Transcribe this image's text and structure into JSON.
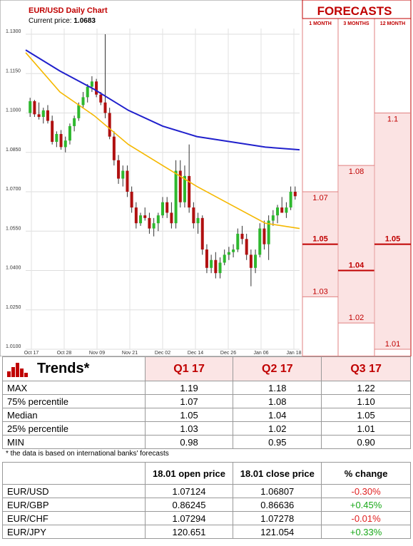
{
  "chart": {
    "title": "EUR/USD Daily Chart",
    "current_price_label": "Current price:",
    "current_price": "1.0683",
    "forecasts_title": "FORECASTS",
    "forecast_columns": [
      "1 MONTH",
      "3 MONTHS",
      "12 MONTH"
    ]
  },
  "chart_data": {
    "type": "candlestick",
    "title": "EUR/USD Daily Chart",
    "ylim": [
      1.01,
      1.13
    ],
    "y_ticks": [
      "1.1300",
      "1.1150",
      "1.1000",
      "1.0850",
      "1.0700",
      "1.0550",
      "1.0400",
      "1.0250",
      "1.0100"
    ],
    "y_tick_values": [
      1.13,
      1.115,
      1.1,
      1.085,
      1.07,
      1.055,
      1.04,
      1.025,
      1.01
    ],
    "x_ticks": [
      "Oct 17",
      "Oct 28",
      "Nov 09",
      "Nov 21",
      "Dec 02",
      "Dec 14",
      "Dec 26",
      "Jan 06",
      "Jan 18"
    ],
    "candles": [
      [
        1.1,
        1.1058,
        1.0985,
        1.1045
      ],
      [
        1.1045,
        1.105,
        1.0985,
        1.0995
      ],
      [
        1.0995,
        1.104,
        1.0975,
        1.0985
      ],
      [
        1.0985,
        1.102,
        1.096,
        1.101
      ],
      [
        1.101,
        1.103,
        1.096,
        1.097
      ],
      [
        1.097,
        1.099,
        1.088,
        1.089
      ],
      [
        1.089,
        1.093,
        1.087,
        1.092
      ],
      [
        1.092,
        1.0935,
        1.086,
        1.087
      ],
      [
        1.087,
        1.091,
        1.085,
        1.0895
      ],
      [
        1.0895,
        1.096,
        1.088,
        1.095
      ],
      [
        1.095,
        1.099,
        1.093,
        1.098
      ],
      [
        1.098,
        1.104,
        1.097,
        1.103
      ],
      [
        1.103,
        1.108,
        1.102,
        1.106
      ],
      [
        1.106,
        1.111,
        1.104,
        1.11
      ],
      [
        1.11,
        1.114,
        1.108,
        1.112
      ],
      [
        1.112,
        1.113,
        1.106,
        1.107
      ],
      [
        1.107,
        1.108,
        1.103,
        1.104
      ],
      [
        1.104,
        1.13,
        1.098,
        1.1
      ],
      [
        1.1,
        1.102,
        1.09,
        1.091
      ],
      [
        1.091,
        1.093,
        1.08,
        1.082
      ],
      [
        1.082,
        1.084,
        1.073,
        1.075
      ],
      [
        1.075,
        1.08,
        1.072,
        1.078
      ],
      [
        1.078,
        1.08,
        1.068,
        1.07
      ],
      [
        1.07,
        1.072,
        1.062,
        1.064
      ],
      [
        1.064,
        1.066,
        1.056,
        1.058
      ],
      [
        1.058,
        1.062,
        1.057,
        1.061
      ],
      [
        1.061,
        1.064,
        1.059,
        1.06
      ],
      [
        1.06,
        1.062,
        1.054,
        1.056
      ],
      [
        1.056,
        1.06,
        1.053,
        1.058
      ],
      [
        1.058,
        1.062,
        1.055,
        1.061
      ],
      [
        1.061,
        1.068,
        1.06,
        1.066
      ],
      [
        1.066,
        1.068,
        1.06,
        1.062
      ],
      [
        1.062,
        1.066,
        1.056,
        1.058
      ],
      [
        1.058,
        1.082,
        1.056,
        1.078
      ],
      [
        1.078,
        1.082,
        1.064,
        1.066
      ],
      [
        1.066,
        1.08,
        1.064,
        1.076
      ],
      [
        1.076,
        1.088,
        1.062,
        1.064
      ],
      [
        1.064,
        1.066,
        1.056,
        1.058
      ],
      [
        1.058,
        1.062,
        1.054,
        1.06
      ],
      [
        1.06,
        1.061,
        1.046,
        1.048
      ],
      [
        1.048,
        1.05,
        1.039,
        1.041
      ],
      [
        1.041,
        1.046,
        1.039,
        1.044
      ],
      [
        1.044,
        1.047,
        1.037,
        1.039
      ],
      [
        1.039,
        1.045,
        1.037,
        1.043
      ],
      [
        1.043,
        1.048,
        1.042,
        1.046
      ],
      [
        1.046,
        1.049,
        1.044,
        1.047
      ],
      [
        1.047,
        1.05,
        1.045,
        1.048
      ],
      [
        1.048,
        1.056,
        1.047,
        1.054
      ],
      [
        1.054,
        1.057,
        1.05,
        1.052
      ],
      [
        1.052,
        1.054,
        1.044,
        1.046
      ],
      [
        1.046,
        1.048,
        1.034,
        1.041
      ],
      [
        1.041,
        1.048,
        1.039,
        1.046
      ],
      [
        1.046,
        1.058,
        1.045,
        1.056
      ],
      [
        1.056,
        1.059,
        1.048,
        1.05
      ],
      [
        1.05,
        1.061,
        1.044,
        1.059
      ],
      [
        1.059,
        1.063,
        1.057,
        1.061
      ],
      [
        1.061,
        1.065,
        1.058,
        1.064
      ],
      [
        1.064,
        1.068,
        1.062,
        1.062
      ],
      [
        1.062,
        1.066,
        1.06,
        1.064
      ],
      [
        1.064,
        1.072,
        1.063,
        1.07
      ],
      [
        1.07,
        1.072,
        1.067,
        1.0683
      ]
    ],
    "ma_slow": [
      1.124,
      1.116,
      1.109,
      1.101,
      1.095,
      1.091,
      1.089,
      1.087,
      1.086
    ],
    "ma_fast": [
      1.123,
      1.108,
      1.099,
      1.088,
      1.08,
      1.072,
      1.065,
      1.058,
      1.056
    ],
    "forecasts": [
      {
        "horizon": "1 MONTH",
        "max": "1.07",
        "max_value": 1.07,
        "median": "1.05",
        "median_value": 1.05,
        "min": "1.03",
        "min_value": 1.03
      },
      {
        "horizon": "3 MONTHS",
        "max": "1.08",
        "max_value": 1.08,
        "median": "1.04",
        "median_value": 1.04,
        "min": "1.02",
        "min_value": 1.02
      },
      {
        "horizon": "12 MONTH",
        "max": "1.1",
        "max_value": 1.1,
        "median": "1.05",
        "median_value": 1.05,
        "min": "1.01",
        "min_value": 1.01
      }
    ]
  },
  "trends": {
    "title": "Trends*",
    "quarters": [
      "Q1 17",
      "Q2 17",
      "Q3 17"
    ],
    "rows": [
      {
        "label": "MAX",
        "values": [
          "1.19",
          "1.18",
          "1.22"
        ]
      },
      {
        "label": "75% percentile",
        "values": [
          "1.07",
          "1.08",
          "1.10"
        ]
      },
      {
        "label": "Median",
        "values": [
          "1.05",
          "1.04",
          "1.05"
        ]
      },
      {
        "label": "25% percentile",
        "values": [
          "1.03",
          "1.02",
          "1.01"
        ]
      },
      {
        "label": "MIN",
        "values": [
          "0.98",
          "0.95",
          "0.90"
        ]
      }
    ],
    "footnote": "* the data is based on international banks' forecasts"
  },
  "prices": {
    "headers": [
      "18.01 open price",
      "18.01 close price",
      "% change"
    ],
    "rows": [
      {
        "pair": "EUR/USD",
        "open": "1.07124",
        "close": "1.06807",
        "change": "-0.30%",
        "dir": "neg"
      },
      {
        "pair": "EUR/GBP",
        "open": "0.86245",
        "close": "0.86636",
        "change": "+0.45%",
        "dir": "pos"
      },
      {
        "pair": "EUR/CHF",
        "open": "1.07294",
        "close": "1.07278",
        "change": "-0.01%",
        "dir": "neg"
      },
      {
        "pair": "EUR/JPY",
        "open": "120.651",
        "close": "121.054",
        "change": "+0.33%",
        "dir": "pos"
      }
    ]
  },
  "colors": {
    "bull": "#2eb82e",
    "bear": "#b01010",
    "ma_slow": "#2020cc",
    "ma_fast": "#f5b800",
    "accent": "#c00000"
  }
}
